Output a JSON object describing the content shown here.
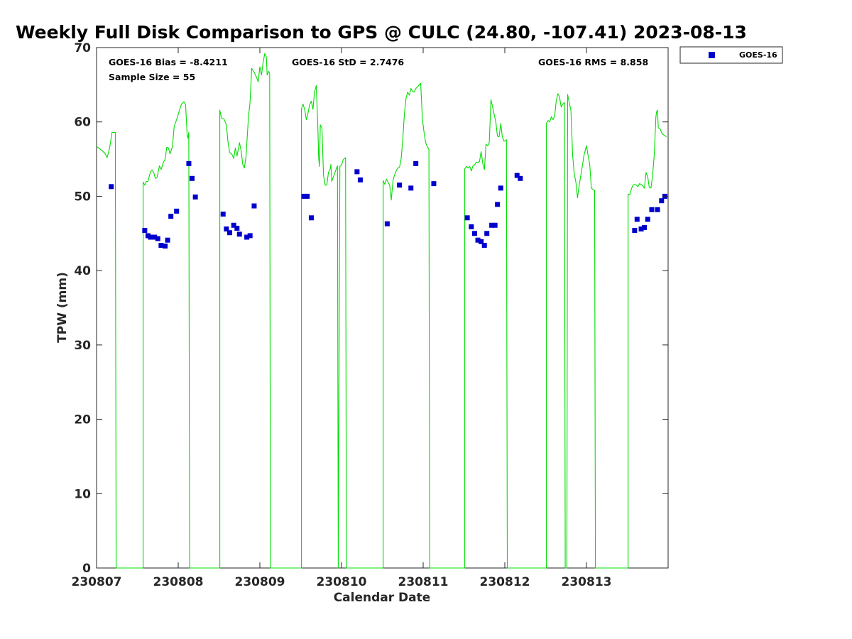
{
  "chart_data": {
    "type": "line+scatter",
    "title": "Weekly Full Disk Comparison to GPS @ CULC (24.80, -107.41) 2023-08-13",
    "xlabel": "Calendar Date",
    "ylabel": "TPW (mm)",
    "xlim": [
      0,
      7
    ],
    "ylim": [
      0,
      70
    ],
    "x_ticks": [
      {
        "value": 0,
        "label": "230807"
      },
      {
        "value": 1,
        "label": "230808"
      },
      {
        "value": 2,
        "label": "230809"
      },
      {
        "value": 3,
        "label": "230810"
      },
      {
        "value": 4,
        "label": "230811"
      },
      {
        "value": 5,
        "label": "230812"
      },
      {
        "value": 6,
        "label": "230813"
      }
    ],
    "y_ticks": [
      {
        "value": 0,
        "label": "0"
      },
      {
        "value": 10,
        "label": "10"
      },
      {
        "value": 20,
        "label": "20"
      },
      {
        "value": 30,
        "label": "30"
      },
      {
        "value": 40,
        "label": "40"
      },
      {
        "value": 50,
        "label": "50"
      },
      {
        "value": 60,
        "label": "60"
      },
      {
        "value": 70,
        "label": "70"
      }
    ],
    "stats": {
      "bias": "GOES-16 Bias = -8.4211",
      "sample": "Sample Size = 55",
      "std": "GOES-16 StD = 2.7476",
      "rms": "GOES-16 RMS = 8.858"
    },
    "legend": [
      {
        "name": "GOES-16",
        "color": "#0000cd",
        "marker": "square"
      }
    ],
    "gps_color": "#00dd00",
    "goes_color": "#0000cd",
    "gps_series": [
      [
        0.0,
        56.7
      ],
      [
        0.05,
        56.3
      ],
      [
        0.1,
        55.8
      ],
      [
        0.13,
        55.2
      ],
      [
        0.16,
        56.5
      ],
      [
        0.19,
        58.6
      ],
      [
        0.23,
        58.6
      ],
      [
        0.24,
        0
      ],
      [
        0.57,
        0
      ],
      [
        0.57,
        51.9
      ],
      [
        0.59,
        51.5
      ],
      [
        0.61,
        52.0
      ],
      [
        0.63,
        52.0
      ],
      [
        0.66,
        53.3
      ],
      [
        0.68,
        53.5
      ],
      [
        0.7,
        53.2
      ],
      [
        0.72,
        52.4
      ],
      [
        0.74,
        52.5
      ],
      [
        0.77,
        54.1
      ],
      [
        0.79,
        53.6
      ],
      [
        0.82,
        54.6
      ],
      [
        0.84,
        55.0
      ],
      [
        0.86,
        56.6
      ],
      [
        0.88,
        56.5
      ],
      [
        0.9,
        55.7
      ],
      [
        0.93,
        56.7
      ],
      [
        0.95,
        59.4
      ],
      [
        0.98,
        60.3
      ],
      [
        1.01,
        61.4
      ],
      [
        1.04,
        62.4
      ],
      [
        1.07,
        62.7
      ],
      [
        1.09,
        62.3
      ],
      [
        1.11,
        58.2
      ],
      [
        1.12,
        57.8
      ],
      [
        1.13,
        58.6
      ],
      [
        1.14,
        0
      ],
      [
        1.51,
        0
      ],
      [
        1.51,
        61.6
      ],
      [
        1.53,
        60.5
      ],
      [
        1.56,
        60.4
      ],
      [
        1.59,
        59.6
      ],
      [
        1.61,
        57.3
      ],
      [
        1.63,
        55.9
      ],
      [
        1.66,
        55.6
      ],
      [
        1.68,
        55.1
      ],
      [
        1.7,
        56.5
      ],
      [
        1.72,
        55.4
      ],
      [
        1.75,
        57.2
      ],
      [
        1.77,
        56.2
      ],
      [
        1.79,
        54.3
      ],
      [
        1.81,
        53.8
      ],
      [
        1.83,
        55.3
      ],
      [
        1.86,
        60.6
      ],
      [
        1.88,
        62.7
      ],
      [
        1.9,
        67.2
      ],
      [
        1.93,
        66.7
      ],
      [
        1.95,
        66.2
      ],
      [
        1.97,
        65.7
      ],
      [
        1.98,
        65.4
      ],
      [
        2.0,
        67.4
      ],
      [
        2.02,
        66.3
      ],
      [
        2.04,
        68.0
      ],
      [
        2.06,
        69.2
      ],
      [
        2.08,
        68.7
      ],
      [
        2.09,
        66.3
      ],
      [
        2.11,
        66.8
      ],
      [
        2.12,
        66.6
      ],
      [
        2.13,
        0
      ],
      [
        2.51,
        0
      ],
      [
        2.51,
        61.8
      ],
      [
        2.53,
        62.4
      ],
      [
        2.55,
        61.6
      ],
      [
        2.57,
        60.3
      ],
      [
        2.59,
        61.2
      ],
      [
        2.61,
        62.3
      ],
      [
        2.63,
        62.8
      ],
      [
        2.65,
        61.7
      ],
      [
        2.67,
        64.0
      ],
      [
        2.69,
        64.9
      ],
      [
        2.71,
        59.6
      ],
      [
        2.72,
        55.2
      ],
      [
        2.73,
        54.0
      ],
      [
        2.74,
        59.6
      ],
      [
        2.76,
        59.2
      ],
      [
        2.78,
        52.8
      ],
      [
        2.8,
        51.5
      ],
      [
        2.82,
        51.5
      ],
      [
        2.84,
        53.2
      ],
      [
        2.86,
        53.6
      ],
      [
        2.87,
        54.3
      ],
      [
        2.88,
        52.0
      ],
      [
        2.9,
        52.6
      ],
      [
        2.92,
        53.2
      ],
      [
        2.94,
        53.8
      ],
      [
        2.95,
        54.1
      ],
      [
        2.96,
        0
      ],
      [
        2.98,
        54.0
      ],
      [
        3.0,
        54.2
      ],
      [
        3.02,
        54.9
      ],
      [
        3.04,
        55.1
      ],
      [
        3.05,
        55.2
      ],
      [
        3.06,
        0
      ],
      [
        3.51,
        0
      ],
      [
        3.51,
        52.1
      ],
      [
        3.53,
        51.6
      ],
      [
        3.55,
        52.3
      ],
      [
        3.57,
        51.9
      ],
      [
        3.59,
        51.5
      ],
      [
        3.61,
        49.5
      ],
      [
        3.63,
        52.1
      ],
      [
        3.65,
        52.9
      ],
      [
        3.67,
        53.4
      ],
      [
        3.69,
        53.8
      ],
      [
        3.71,
        53.9
      ],
      [
        3.73,
        55.0
      ],
      [
        3.75,
        57.6
      ],
      [
        3.77,
        61.0
      ],
      [
        3.79,
        63.2
      ],
      [
        3.81,
        64.0
      ],
      [
        3.83,
        63.6
      ],
      [
        3.85,
        64.5
      ],
      [
        3.87,
        64.1
      ],
      [
        3.89,
        64.0
      ],
      [
        3.91,
        64.5
      ],
      [
        3.93,
        64.7
      ],
      [
        3.95,
        65.0
      ],
      [
        3.97,
        65.2
      ],
      [
        3.99,
        60.4
      ],
      [
        4.01,
        58.7
      ],
      [
        4.03,
        57.2
      ],
      [
        4.05,
        56.7
      ],
      [
        4.07,
        56.3
      ],
      [
        4.08,
        0
      ],
      [
        4.51,
        0
      ],
      [
        4.51,
        53.7
      ],
      [
        4.53,
        54.0
      ],
      [
        4.55,
        53.8
      ],
      [
        4.57,
        54.0
      ],
      [
        4.59,
        53.4
      ],
      [
        4.61,
        54.1
      ],
      [
        4.63,
        54.2
      ],
      [
        4.65,
        54.6
      ],
      [
        4.67,
        54.5
      ],
      [
        4.69,
        54.7
      ],
      [
        4.71,
        56.0
      ],
      [
        4.73,
        54.4
      ],
      [
        4.75,
        53.6
      ],
      [
        4.77,
        57.0
      ],
      [
        4.79,
        56.8
      ],
      [
        4.81,
        57.2
      ],
      [
        4.83,
        63.0
      ],
      [
        4.85,
        62.0
      ],
      [
        4.87,
        61.0
      ],
      [
        4.89,
        60.0
      ],
      [
        4.91,
        58.1
      ],
      [
        4.93,
        58.0
      ],
      [
        4.95,
        59.8
      ],
      [
        4.97,
        58.0
      ],
      [
        4.99,
        57.4
      ],
      [
        5.01,
        57.5
      ],
      [
        5.02,
        57.6
      ],
      [
        5.03,
        0
      ],
      [
        5.51,
        0
      ],
      [
        5.51,
        59.8
      ],
      [
        5.53,
        60.2
      ],
      [
        5.55,
        60.0
      ],
      [
        5.57,
        60.7
      ],
      [
        5.59,
        60.3
      ],
      [
        5.61,
        60.8
      ],
      [
        5.63,
        62.8
      ],
      [
        5.65,
        63.8
      ],
      [
        5.67,
        63.4
      ],
      [
        5.69,
        62.0
      ],
      [
        5.71,
        62.4
      ],
      [
        5.73,
        62.6
      ],
      [
        5.74,
        0
      ],
      [
        5.76,
        0
      ],
      [
        5.77,
        63.7
      ],
      [
        5.79,
        62.5
      ],
      [
        5.81,
        61.6
      ],
      [
        5.83,
        55.6
      ],
      [
        5.85,
        53.1
      ],
      [
        5.87,
        51.9
      ],
      [
        5.89,
        49.8
      ],
      [
        5.91,
        51.4
      ],
      [
        5.94,
        53.4
      ],
      [
        5.97,
        55.5
      ],
      [
        6.0,
        56.8
      ],
      [
        6.02,
        55.5
      ],
      [
        6.04,
        54.3
      ],
      [
        6.06,
        51.1
      ],
      [
        6.08,
        50.9
      ],
      [
        6.1,
        50.8
      ],
      [
        6.11,
        0
      ],
      [
        6.51,
        0
      ],
      [
        6.51,
        50.3
      ],
      [
        6.53,
        50.2
      ],
      [
        6.55,
        51.0
      ],
      [
        6.57,
        51.5
      ],
      [
        6.59,
        51.6
      ],
      [
        6.61,
        51.5
      ],
      [
        6.63,
        51.3
      ],
      [
        6.65,
        51.7
      ],
      [
        6.67,
        51.6
      ],
      [
        6.69,
        51.4
      ],
      [
        6.71,
        51.1
      ],
      [
        6.73,
        53.2
      ],
      [
        6.75,
        52.6
      ],
      [
        6.77,
        51.2
      ],
      [
        6.79,
        51.1
      ],
      [
        6.81,
        52.8
      ],
      [
        6.83,
        55.6
      ],
      [
        6.85,
        60.7
      ],
      [
        6.86,
        61.4
      ],
      [
        6.87,
        61.6
      ],
      [
        6.88,
        59.2
      ],
      [
        6.9,
        59.1
      ],
      [
        6.92,
        58.6
      ],
      [
        6.94,
        58.3
      ],
      [
        6.98,
        58.0
      ]
    ],
    "goes_points": [
      [
        0.18,
        51.3
      ],
      [
        0.59,
        45.4
      ],
      [
        0.63,
        44.7
      ],
      [
        0.66,
        44.5
      ],
      [
        0.71,
        44.5
      ],
      [
        0.75,
        44.3
      ],
      [
        0.79,
        43.4
      ],
      [
        0.84,
        43.3
      ],
      [
        0.87,
        44.1
      ],
      [
        0.91,
        47.3
      ],
      [
        0.98,
        48.0
      ],
      [
        1.13,
        54.4
      ],
      [
        1.17,
        52.4
      ],
      [
        1.21,
        49.9
      ],
      [
        1.55,
        47.6
      ],
      [
        1.59,
        45.6
      ],
      [
        1.63,
        45.1
      ],
      [
        1.68,
        46.1
      ],
      [
        1.72,
        45.7
      ],
      [
        1.75,
        44.9
      ],
      [
        1.84,
        44.5
      ],
      [
        1.88,
        44.7
      ],
      [
        1.93,
        48.7
      ],
      [
        2.54,
        50.0
      ],
      [
        2.58,
        50.0
      ],
      [
        2.63,
        47.1
      ],
      [
        3.19,
        53.3
      ],
      [
        3.23,
        52.2
      ],
      [
        3.56,
        46.3
      ],
      [
        3.71,
        51.5
      ],
      [
        3.85,
        51.1
      ],
      [
        3.91,
        54.4
      ],
      [
        4.13,
        51.7
      ],
      [
        4.54,
        47.1
      ],
      [
        4.59,
        45.9
      ],
      [
        4.63,
        45.0
      ],
      [
        4.67,
        44.1
      ],
      [
        4.71,
        43.9
      ],
      [
        4.75,
        43.4
      ],
      [
        4.78,
        45.0
      ],
      [
        4.84,
        46.1
      ],
      [
        4.88,
        46.1
      ],
      [
        4.91,
        48.9
      ],
      [
        4.95,
        51.1
      ],
      [
        5.15,
        52.8
      ],
      [
        5.19,
        52.4
      ],
      [
        6.59,
        45.4
      ],
      [
        6.62,
        46.9
      ],
      [
        6.67,
        45.6
      ],
      [
        6.71,
        45.8
      ],
      [
        6.75,
        46.9
      ],
      [
        6.8,
        48.2
      ],
      [
        6.87,
        48.2
      ],
      [
        6.92,
        49.4
      ],
      [
        6.96,
        50.0
      ]
    ]
  }
}
